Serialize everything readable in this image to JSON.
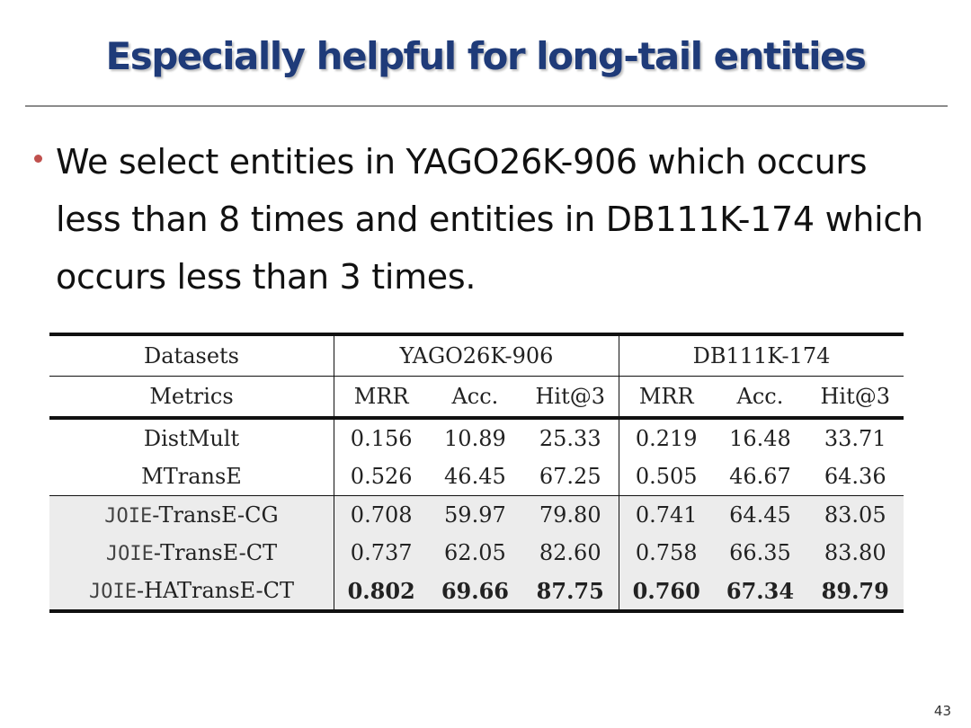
{
  "slide": {
    "title": "Especially helpful for long-tail entities",
    "bullet": "We select entities in YAGO26K-906 which occurs less than 8 times and entities in DB111K-174 which occurs less than 3 times.",
    "page_number": "43"
  },
  "table": {
    "datasets_label": "Datasets",
    "metrics_label": "Metrics",
    "dataset1": "YAGO26K-906",
    "dataset2": "DB111K-174",
    "metrics": [
      "MRR",
      "Acc.",
      "Hit@3",
      "MRR",
      "Acc.",
      "Hit@3"
    ],
    "rows": [
      {
        "prefix": "",
        "name": "DistMult",
        "values": [
          "0.156",
          "10.89",
          "25.33",
          "0.219",
          "16.48",
          "33.71"
        ]
      },
      {
        "prefix": "",
        "name": "MTransE",
        "values": [
          "0.526",
          "46.45",
          "67.25",
          "0.505",
          "46.67",
          "64.36"
        ]
      },
      {
        "prefix": "JOIE",
        "name": "-TransE-CG",
        "values": [
          "0.708",
          "59.97",
          "79.80",
          "0.741",
          "64.45",
          "83.05"
        ]
      },
      {
        "prefix": "JOIE",
        "name": "-TransE-CT",
        "values": [
          "0.737",
          "62.05",
          "82.60",
          "0.758",
          "66.35",
          "83.80"
        ]
      },
      {
        "prefix": "JOIE",
        "name": "-HATransE-CT",
        "values": [
          "0.802",
          "69.66",
          "87.75",
          "0.760",
          "67.34",
          "89.79"
        ]
      }
    ]
  },
  "colors": {
    "title": "#1f3b79",
    "bullet": "#c0504d",
    "highlight_rows": "#ececec"
  }
}
